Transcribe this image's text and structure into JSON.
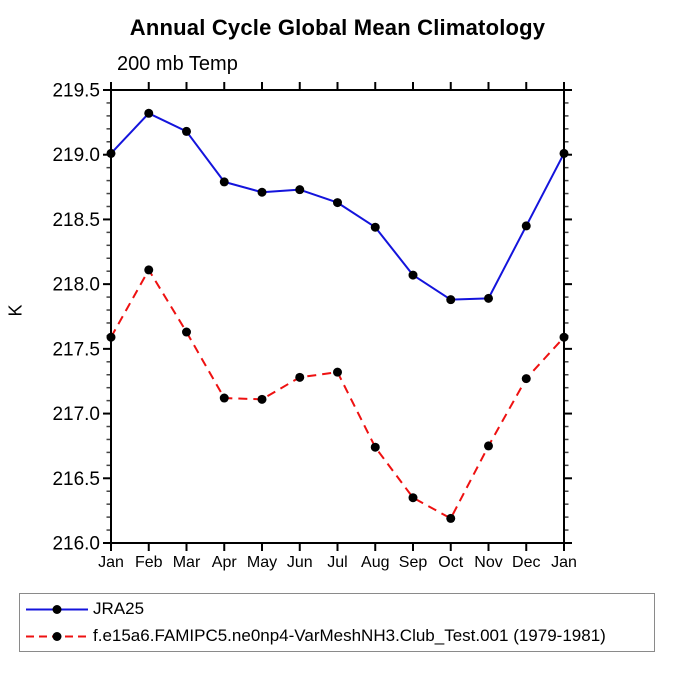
{
  "title": "Annual Cycle Global Mean Climatology",
  "subtitle": "200 mb Temp",
  "ylabel": "K",
  "colors": {
    "series1": "#1414dc",
    "series2": "#ee1111",
    "marker": "#000000",
    "axis": "#000000",
    "minor_tick": "#444444",
    "legend_border": "#8a8a8a"
  },
  "chart_data": {
    "type": "line",
    "title": "Annual Cycle Global Mean Climatology",
    "subtitle": "200 mb Temp",
    "ylabel": "K",
    "categories": [
      "Jan",
      "Feb",
      "Mar",
      "Apr",
      "May",
      "Jun",
      "Jul",
      "Aug",
      "Sep",
      "Oct",
      "Nov",
      "Dec",
      "Jan"
    ],
    "ylim": [
      216.0,
      219.5
    ],
    "ytick_step": 0.5,
    "y_minor_step": 0.1,
    "ytick_labels": [
      "216.0",
      "216.5",
      "217.0",
      "217.5",
      "218.0",
      "218.5",
      "219.0",
      "219.5"
    ],
    "grid": false,
    "legend_position": "bottom-left",
    "series": [
      {
        "name": "JRA25",
        "color": "#1414dc",
        "line_style": "solid",
        "marker": "filled-circle",
        "marker_color": "#000000",
        "values": [
          219.01,
          219.32,
          219.18,
          218.79,
          218.71,
          218.73,
          218.63,
          218.44,
          218.07,
          217.88,
          217.89,
          218.45,
          219.01
        ]
      },
      {
        "name": "f.e15a6.FAMIPC5.ne0np4-VarMeshNH3.Club_Test.001 (1979-1981)",
        "color": "#ee1111",
        "line_style": "dashed",
        "marker": "filled-circle",
        "marker_color": "#000000",
        "values": [
          217.59,
          218.11,
          217.63,
          217.12,
          217.11,
          217.28,
          217.32,
          216.74,
          216.35,
          216.19,
          216.75,
          217.27,
          217.59
        ]
      }
    ]
  }
}
